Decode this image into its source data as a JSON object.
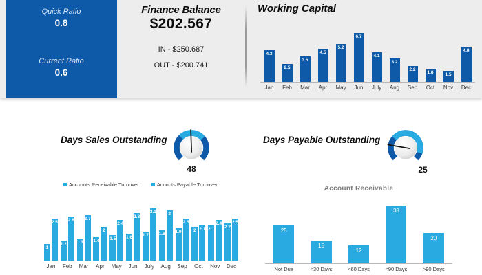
{
  "colors": {
    "dark_blue": "#0F5AA8",
    "light_blue": "#29ABE2",
    "panel_gray": "#EDEDED",
    "title_gray": "#7F7F7F"
  },
  "ratio_panel": {
    "quick_label": "Quick Ratio",
    "quick_value": "0.8",
    "current_label": "Current Ratio",
    "current_value": "0.6"
  },
  "finance": {
    "title": "Finance Balance",
    "balance": "$202.567",
    "in_line": "IN - $250.687",
    "out_line": "OUT - $200.741"
  },
  "chart_data": [
    {
      "id": "working_capital",
      "type": "bar",
      "title": "Working Capital",
      "categories": [
        "Jan",
        "Feb",
        "Mar",
        "Apr",
        "May",
        "Jun",
        "July",
        "Aug",
        "Sep",
        "Oct",
        "Nov",
        "Dec"
      ],
      "values": [
        4.3,
        2.5,
        3.5,
        4.5,
        5.2,
        6.7,
        4.1,
        3.2,
        2.2,
        1.8,
        1.5,
        4.8
      ],
      "ylim": [
        0,
        7
      ],
      "bar_color": "#0F5AA8",
      "data_labels": true,
      "grid": false,
      "legend_position": "none"
    },
    {
      "id": "dso_gauge",
      "type": "gauge",
      "title": "Days Sales Outstanding",
      "value": 48,
      "ring_color": "#0F5AA8",
      "highlight_color": "#29ABE2",
      "highlight_arc_deg": [
        -45,
        50
      ],
      "needle_angle_deg": -2
    },
    {
      "id": "dpo_gauge",
      "type": "gauge",
      "title": "Days Payable Outstanding",
      "value": 25,
      "ring_color": "#0F5AA8",
      "highlight_color": "#29ABE2",
      "highlight_arc_deg": [
        -50,
        110
      ],
      "needle_angle_deg": -80
    },
    {
      "id": "turnover",
      "type": "bar",
      "title": "",
      "categories": [
        "Jan",
        "Feb",
        "Mar",
        "Apr",
        "May",
        "Jun",
        "July",
        "Aug",
        "Sep",
        "Oct",
        "Nov",
        "Dec"
      ],
      "series": [
        {
          "name": "Accounts Receivable Turnover",
          "values": [
            1,
            1.2,
            1.3,
            1.4,
            1.5,
            1.6,
            1.7,
            1.8,
            1.9,
            2,
            2.1,
            2.2
          ]
        },
        {
          "name": "Acounts Payable Turnover",
          "values": [
            2.5,
            2.6,
            2.7,
            2,
            2.4,
            2.8,
            3.1,
            3,
            2.5,
            2.1,
            2.4,
            2.5
          ]
        }
      ],
      "ylim": [
        0,
        3.5
      ],
      "bar_color": "#29ABE2",
      "data_labels": true,
      "grid": false,
      "legend_position": "top"
    },
    {
      "id": "account_receivable",
      "type": "bar",
      "title": "Account Receivable",
      "categories": [
        "Not Due",
        "<30 Days",
        "<60 Days",
        "<90 Days",
        ">90 Days"
      ],
      "values": [
        25,
        15,
        12,
        38,
        20
      ],
      "ylim": [
        0,
        40
      ],
      "bar_color": "#29ABE2",
      "data_labels": true,
      "grid": false,
      "legend_position": "none"
    }
  ]
}
